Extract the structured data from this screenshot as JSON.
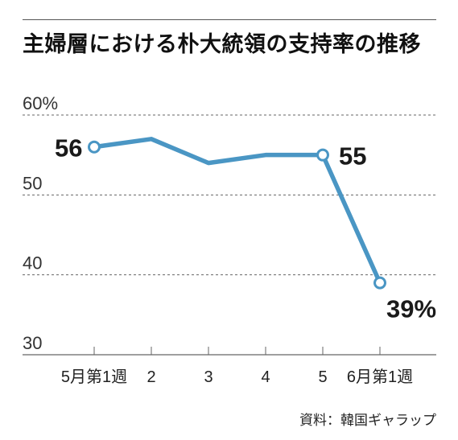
{
  "title": "主婦層における朴大統領の支持率の推移",
  "source": "資料：韓国ギャラップ",
  "colors": {
    "line": "#4a96c4",
    "grid": "#666666",
    "text": "#222222"
  },
  "chart_data": {
    "type": "line",
    "title": "主婦層における朴大統領の支持率の推移",
    "categories": [
      "5月第1週",
      "2",
      "3",
      "4",
      "5",
      "6月第1週"
    ],
    "series": [
      {
        "values": [
          56,
          57,
          54,
          55,
          55,
          39
        ]
      }
    ],
    "ylim": [
      30,
      60
    ],
    "yticks": [
      {
        "value": 30,
        "label": "30"
      },
      {
        "value": 40,
        "label": "40"
      },
      {
        "value": 50,
        "label": "50"
      },
      {
        "value": 60,
        "label": "60%"
      }
    ],
    "data_labels": [
      {
        "index": 0,
        "text": "56"
      },
      {
        "index": 4,
        "text": "55"
      },
      {
        "index": 5,
        "text": "39%"
      }
    ],
    "grid": true
  }
}
